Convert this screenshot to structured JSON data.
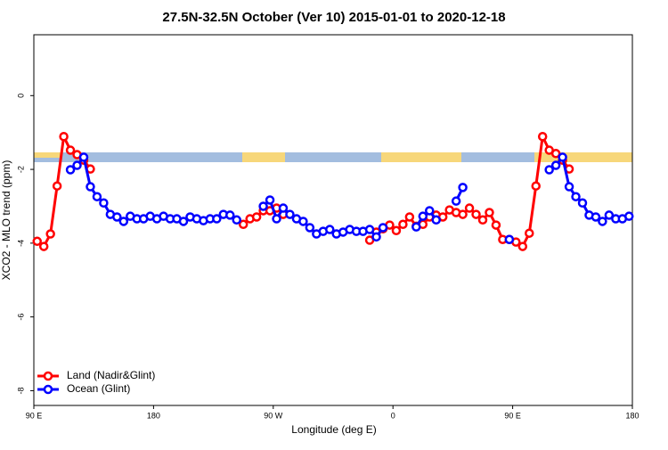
{
  "chart_data": {
    "type": "line",
    "title": "27.5N-32.5N October (Ver 10)   2015-01-01 to 2020-12-18",
    "x_label": "Longitude (deg E)",
    "y_label": "XCO2 - MLO trend (ppm)",
    "xlim": [
      90,
      540
    ],
    "ylim": [
      -8.4,
      1.65
    ],
    "xticks": [
      {
        "value": 90,
        "label": "90 E"
      },
      180,
      {
        "value": 270,
        "label": "90 W"
      },
      {
        "value": 360,
        "label": "0"
      },
      {
        "value": 450,
        "label": "90 E"
      },
      {
        "value": 540,
        "label": "180"
      }
    ],
    "yticks": [
      -8,
      -6,
      -4,
      -2,
      0
    ],
    "legend": "bottom-left",
    "x": [
      92.5,
      97.5,
      102.5,
      107.5,
      112.5,
      117.5,
      122.5,
      127.5,
      132.5,
      137.5,
      142.5,
      147.5,
      152.5,
      157.5,
      162.5,
      167.5,
      172.5,
      177.5,
      182.5,
      187.5,
      192.5,
      197.5,
      202.5,
      207.5,
      212.5,
      217.5,
      222.5,
      227.5,
      232.5,
      237.5,
      242.5,
      247.5,
      252.5,
      257.5,
      262.5,
      267.5,
      272.5,
      277.5,
      282.5,
      287.5,
      292.5,
      297.5,
      302.5,
      307.5,
      312.5,
      317.5,
      322.5,
      327.5,
      332.5,
      337.5,
      342.5,
      347.5,
      352.5,
      357.5,
      362.5,
      367.5,
      372.5,
      377.5,
      382.5,
      387.5,
      392.5,
      397.5,
      402.5,
      407.5,
      412.5,
      417.5,
      422.5,
      427.5,
      432.5,
      437.5,
      442.5,
      447.5,
      452.5,
      457.5,
      462.5,
      467.5,
      472.5,
      477.5,
      482.5,
      487.5,
      492.5,
      497.5,
      502.5,
      507.5,
      512.5,
      517.5,
      522.5,
      527.5,
      532.5,
      537.5
    ],
    "series": [
      {
        "name": "Land (Nadir&Glint)",
        "color": "#ff0000",
        "values": [
          -3.95,
          -4.09,
          -3.75,
          -2.45,
          -1.11,
          -1.48,
          -1.6,
          -1.75,
          -1.99,
          null,
          null,
          null,
          null,
          null,
          null,
          null,
          null,
          null,
          null,
          null,
          null,
          null,
          null,
          null,
          null,
          null,
          null,
          null,
          null,
          null,
          null,
          -3.49,
          -3.34,
          -3.29,
          -3.12,
          -3.12,
          -3.05,
          -3.22,
          null,
          null,
          null,
          null,
          null,
          null,
          null,
          null,
          null,
          null,
          null,
          null,
          -3.92,
          -3.7,
          -3.61,
          -3.51,
          -3.66,
          -3.49,
          -3.29,
          -3.54,
          -3.49,
          -3.29,
          -3.24,
          -3.29,
          -3.1,
          -3.17,
          -3.22,
          -3.05,
          -3.22,
          -3.37,
          -3.17,
          -3.51,
          -3.9,
          -3.9,
          -3.97,
          -4.09,
          -3.73,
          -2.45,
          -1.11,
          -1.48,
          -1.57,
          -1.75,
          -1.99,
          null,
          null,
          null,
          null,
          null,
          null,
          null,
          null,
          null
        ]
      },
      {
        "name": "Ocean (Glint)",
        "color": "#0000ff",
        "values": [
          null,
          null,
          null,
          null,
          null,
          -2.01,
          -1.89,
          -1.67,
          -2.47,
          -2.74,
          -2.91,
          -3.22,
          -3.29,
          -3.41,
          -3.27,
          -3.34,
          -3.34,
          -3.27,
          -3.34,
          -3.27,
          -3.34,
          -3.34,
          -3.41,
          -3.29,
          -3.34,
          -3.39,
          -3.34,
          -3.34,
          -3.22,
          -3.24,
          -3.37,
          null,
          null,
          null,
          -3.0,
          -2.83,
          -3.34,
          -3.05,
          -3.22,
          -3.34,
          -3.41,
          -3.58,
          -3.75,
          -3.68,
          -3.63,
          -3.75,
          -3.7,
          -3.63,
          -3.68,
          -3.68,
          -3.63,
          -3.83,
          -3.58,
          null,
          null,
          null,
          null,
          -3.56,
          -3.27,
          -3.12,
          -3.37,
          null,
          null,
          -2.86,
          -2.49,
          null,
          null,
          null,
          null,
          null,
          null,
          -3.9,
          null,
          null,
          null,
          null,
          null,
          -2.01,
          -1.89,
          -1.67,
          -2.47,
          -2.74,
          -2.91,
          -3.24,
          -3.29,
          -3.41,
          -3.24,
          -3.34,
          -3.34,
          -3.27
        ]
      }
    ]
  }
}
